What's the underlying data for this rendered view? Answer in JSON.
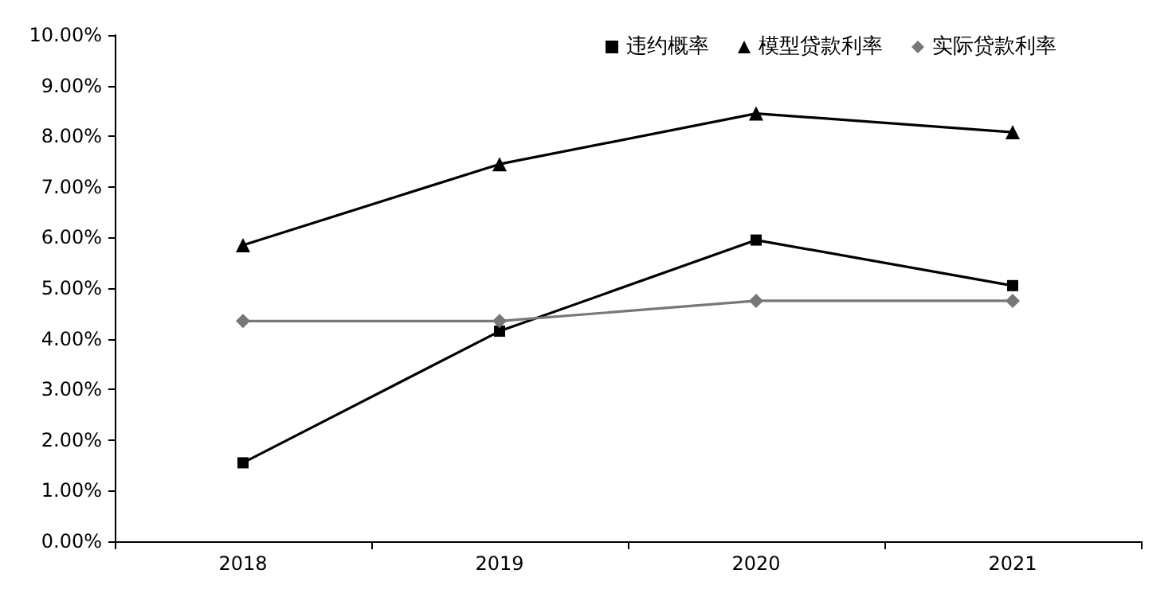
{
  "chart_data": {
    "type": "line",
    "categories": [
      "2018",
      "2019",
      "2020",
      "2021"
    ],
    "series": [
      {
        "name": "违约概率",
        "color": "#000000",
        "marker": "square",
        "values": [
          1.55,
          4.15,
          5.95,
          5.05
        ]
      },
      {
        "name": "模型贷款利率",
        "color": "#000000",
        "marker": "triangle",
        "values": [
          5.85,
          7.45,
          8.45,
          8.08
        ]
      },
      {
        "name": "实际贷款利率",
        "color": "#777777",
        "marker": "diamond",
        "values": [
          4.35,
          4.35,
          4.75,
          4.75
        ]
      }
    ],
    "ylim": [
      0,
      10
    ],
    "yticks": [
      {
        "value": 0,
        "label": "0.00%"
      },
      {
        "value": 1,
        "label": "1.00%"
      },
      {
        "value": 2,
        "label": "2.00%"
      },
      {
        "value": 3,
        "label": "3.00%"
      },
      {
        "value": 4,
        "label": "4.00%"
      },
      {
        "value": 5,
        "label": "5.00%"
      },
      {
        "value": 6,
        "label": "6.00%"
      },
      {
        "value": 7,
        "label": "7.00%"
      },
      {
        "value": 8,
        "label": "8.00%"
      },
      {
        "value": 9,
        "label": "9.00%"
      },
      {
        "value": 10,
        "label": "10.00%"
      }
    ],
    "grid": false,
    "legend": "top right",
    "line_style": "solid"
  }
}
